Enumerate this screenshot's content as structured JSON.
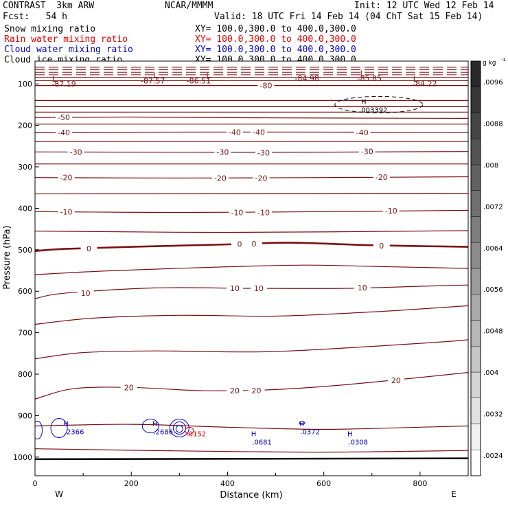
{
  "header": {
    "title": "CONTRAST  3km ARW",
    "producer": "NCAR/MMMM",
    "init": "Init: 12 UTC Wed 12 Feb 14",
    "fcst": "Fcst:   54 h",
    "valid": "Valid: 18 UTC Fri 14 Feb 14 (04 ChT Sat 15 Feb 14)"
  },
  "fields": [
    {
      "name": "Snow mixing ratio",
      "xy": "XY= 100.0,300.0 to 400.0,300.0",
      "color": "#000000"
    },
    {
      "name": "Rain water mixing ratio",
      "xy": "XY= 100.0,300.0 to 400.0,300.0",
      "color": "#e00000"
    },
    {
      "name": "Cloud water mixing ratio",
      "xy": "XY= 100.0,300.0 to 400.0,300.0",
      "color": "#0000c8"
    },
    {
      "name": "Cloud ice mixing ratio",
      "xy": "XY= 100.0,300.0 to 400.0,300.0",
      "color": "#000000"
    }
  ],
  "chart_data": {
    "type": "contour-cross-section",
    "xlabel": "Distance (km)",
    "ylabel": "Pressure (hPa)",
    "xlim": [
      0,
      900
    ],
    "ylim": [
      1045,
      45
    ],
    "x_ticks": [
      "0",
      "200",
      "400",
      "600",
      "800"
    ],
    "x_tick_values": [
      0,
      200,
      400,
      600,
      800
    ],
    "y_ticks": [
      "100",
      "200",
      "300",
      "400",
      "500",
      "600",
      "700",
      "800",
      "900",
      "1000"
    ],
    "y_tick_values": [
      100,
      200,
      300,
      400,
      500,
      600,
      700,
      800,
      900,
      1000
    ],
    "west_label": "W",
    "east_label": "E",
    "colorbar": {
      "unit": "g kg",
      "unit_exponent": "-1",
      "labels": [
        ".0096",
        ".0088",
        ".008",
        ".0072",
        ".0064",
        ".0056",
        ".0048",
        ".004",
        ".0032",
        ".0024"
      ],
      "label_values": [
        0.0096,
        0.0088,
        0.008,
        0.0072,
        0.0064,
        0.0056,
        0.0048,
        0.004,
        0.0032,
        0.0024
      ],
      "min": 0.002,
      "max": 0.01
    },
    "temperature_contours": [
      {
        "label": "-80",
        "points": [
          [
            0,
            104
          ],
          [
            900,
            104
          ]
        ]
      },
      {
        "label": "",
        "points": [
          [
            0,
            140
          ],
          [
            900,
            140
          ]
        ]
      },
      {
        "label": "",
        "points": [
          [
            0,
            155
          ],
          [
            900,
            155
          ]
        ]
      },
      {
        "label": "",
        "points": [
          [
            0,
            168
          ],
          [
            900,
            168
          ]
        ]
      },
      {
        "label": "-50",
        "points": [
          [
            0,
            181
          ],
          [
            200,
            180
          ],
          [
            500,
            182
          ],
          [
            900,
            183
          ]
        ]
      },
      {
        "label": "",
        "points": [
          [
            0,
            197
          ],
          [
            900,
            197
          ]
        ]
      },
      {
        "label": "-40",
        "points": [
          [
            0,
            217
          ],
          [
            450,
            216
          ],
          [
            900,
            217
          ]
        ]
      },
      {
        "label": "",
        "points": [
          [
            0,
            239
          ],
          [
            900,
            239
          ]
        ]
      },
      {
        "label": "-30",
        "points": [
          [
            0,
            264
          ],
          [
            450,
            265
          ],
          [
            900,
            263
          ]
        ]
      },
      {
        "label": "",
        "points": [
          [
            0,
            293
          ],
          [
            900,
            293
          ]
        ]
      },
      {
        "label": "-20",
        "points": [
          [
            0,
            326
          ],
          [
            300,
            327
          ],
          [
            600,
            326
          ],
          [
            900,
            324
          ]
        ]
      },
      {
        "label": "",
        "points": [
          [
            0,
            365
          ],
          [
            900,
            364
          ]
        ]
      },
      {
        "label": "-10",
        "points": [
          [
            0,
            408
          ],
          [
            300,
            410
          ],
          [
            600,
            408
          ],
          [
            900,
            405
          ]
        ]
      },
      {
        "label": "",
        "points": [
          [
            0,
            455
          ],
          [
            400,
            458
          ],
          [
            900,
            454
          ]
        ]
      },
      {
        "label": "0",
        "thick": true,
        "points": [
          [
            0,
            503
          ],
          [
            60,
            498
          ],
          [
            200,
            493
          ],
          [
            400,
            487
          ],
          [
            530,
            483
          ],
          [
            700,
            489
          ],
          [
            900,
            493
          ]
        ]
      },
      {
        "label": "",
        "points": [
          [
            0,
            560
          ],
          [
            150,
            551
          ],
          [
            400,
            541
          ],
          [
            560,
            537
          ],
          [
            700,
            540
          ],
          [
            900,
            545
          ]
        ]
      },
      {
        "label": "10",
        "points": [
          [
            0,
            618
          ],
          [
            60,
            605
          ],
          [
            250,
            592
          ],
          [
            450,
            593
          ],
          [
            650,
            593
          ],
          [
            800,
            588
          ],
          [
            900,
            585
          ]
        ]
      },
      {
        "label": "",
        "points": [
          [
            0,
            680
          ],
          [
            120,
            665
          ],
          [
            300,
            658
          ],
          [
            500,
            660
          ],
          [
            700,
            650
          ],
          [
            900,
            635
          ]
        ]
      },
      {
        "label": "",
        "points": [
          [
            0,
            763
          ],
          [
            100,
            748
          ],
          [
            250,
            744
          ],
          [
            480,
            746
          ],
          [
            700,
            733
          ],
          [
            850,
            722
          ],
          [
            900,
            717
          ]
        ]
      },
      {
        "label": "20",
        "points": [
          [
            0,
            860
          ],
          [
            80,
            835
          ],
          [
            200,
            832
          ],
          [
            350,
            840
          ],
          [
            480,
            838
          ],
          [
            620,
            828
          ],
          [
            800,
            808
          ],
          [
            900,
            796
          ]
        ]
      },
      {
        "label": "",
        "points": [
          [
            0,
            925
          ],
          [
            200,
            921
          ],
          [
            400,
            928
          ],
          [
            600,
            933
          ],
          [
            800,
            928
          ],
          [
            900,
            925
          ]
        ]
      },
      {
        "label": "",
        "points": [
          [
            0,
            980
          ],
          [
            300,
            985
          ],
          [
            600,
            988
          ],
          [
            900,
            984
          ]
        ]
      }
    ],
    "contour_labels": [
      {
        "text": "-80",
        "x": 480,
        "p": 104
      },
      {
        "text": "-50",
        "x": 60,
        "p": 181
      },
      {
        "text": "-40",
        "x": 60,
        "p": 217
      },
      {
        "text": "-40",
        "x": 415,
        "p": 216
      },
      {
        "text": "-40",
        "x": 465,
        "p": 216
      },
      {
        "text": "-40",
        "x": 680,
        "p": 217
      },
      {
        "text": "-30",
        "x": 85,
        "p": 264
      },
      {
        "text": "-30",
        "x": 390,
        "p": 264
      },
      {
        "text": "-30",
        "x": 475,
        "p": 266
      },
      {
        "text": "-30",
        "x": 690,
        "p": 263
      },
      {
        "text": "-20",
        "x": 65,
        "p": 326
      },
      {
        "text": "-20",
        "x": 385,
        "p": 327
      },
      {
        "text": "-20",
        "x": 470,
        "p": 327
      },
      {
        "text": "-20",
        "x": 720,
        "p": 325
      },
      {
        "text": "-10",
        "x": 65,
        "p": 408
      },
      {
        "text": "-10",
        "x": 420,
        "p": 410
      },
      {
        "text": "-10",
        "x": 475,
        "p": 410
      },
      {
        "text": "-10",
        "x": 740,
        "p": 406
      },
      {
        "text": "0",
        "x": 112,
        "p": 497
      },
      {
        "text": "0",
        "x": 425,
        "p": 486
      },
      {
        "text": "0",
        "x": 455,
        "p": 485
      },
      {
        "text": "0",
        "x": 720,
        "p": 490
      },
      {
        "text": "10",
        "x": 105,
        "p": 605
      },
      {
        "text": "10",
        "x": 415,
        "p": 593
      },
      {
        "text": "10",
        "x": 465,
        "p": 593
      },
      {
        "text": "10",
        "x": 680,
        "p": 591
      },
      {
        "text": "20",
        "x": 195,
        "p": 832
      },
      {
        "text": "20",
        "x": 415,
        "p": 840
      },
      {
        "text": "20",
        "x": 460,
        "p": 840
      },
      {
        "text": "20",
        "x": 750,
        "p": 815
      }
    ],
    "upper_lows": [
      {
        "text": "L",
        "x": 40,
        "p": 88
      },
      {
        "text": "L",
        "x": 250,
        "p": 80
      },
      {
        "text": "L",
        "x": 360,
        "p": 80
      },
      {
        "text": "L",
        "x": 680,
        "p": 74
      },
      {
        "text": "L",
        "x": 790,
        "p": 88
      }
    ],
    "upper_values": [
      {
        "text": "-87.19",
        "x": 60,
        "p": 100
      },
      {
        "text": "-87.57",
        "x": 245,
        "p": 92
      },
      {
        "text": "-86.51",
        "x": 340,
        "p": 92
      },
      {
        "text": "-84.98",
        "x": 565,
        "p": 86
      },
      {
        "text": "-85.85",
        "x": 695,
        "p": 86
      },
      {
        "text": "-84.22",
        "x": 810,
        "p": 99
      }
    ],
    "ice_max": {
      "label": "H",
      "value": ".003392",
      "x": 700,
      "p": 150
    },
    "cloud_water_maxima": [
      {
        "label": "H",
        "value": ".2366",
        "x": 70,
        "p": 935
      },
      {
        "label": "H",
        "value": ".2686",
        "x": 255,
        "p": 935
      },
      {
        "label": "H",
        "value": ".0681",
        "x": 460,
        "p": 960
      },
      {
        "label": "H",
        "value": ".0372",
        "x": 560,
        "p": 935
      },
      {
        "label": "H",
        "value": ".0308",
        "x": 660,
        "p": 960
      }
    ],
    "rain_max": {
      "value": ".0152",
      "x": 335,
      "p": 943
    }
  }
}
